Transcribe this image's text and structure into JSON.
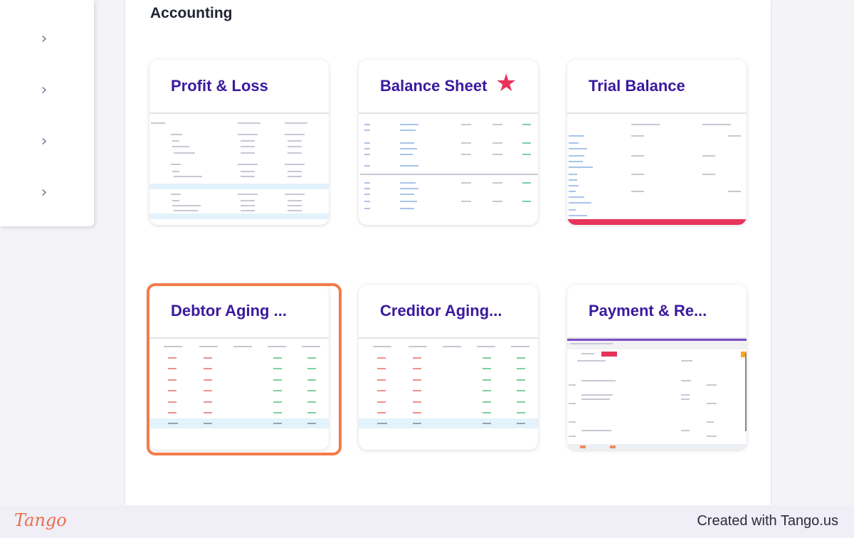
{
  "section_title": "Accounting",
  "cards": [
    {
      "title": "Profit & Loss"
    },
    {
      "title": "Balance Sheet",
      "favorite": true
    },
    {
      "title": "Trial Balance"
    },
    {
      "title": "Debtor Aging ..."
    },
    {
      "title": "Creditor Aging..."
    },
    {
      "title": "Payment & Re..."
    }
  ],
  "footer": {
    "logo": "Tango",
    "credit": "Created with Tango.us"
  },
  "colors": {
    "title": "#3a1a9e",
    "star": "#e8335a",
    "highlight": "#f47b4a"
  }
}
